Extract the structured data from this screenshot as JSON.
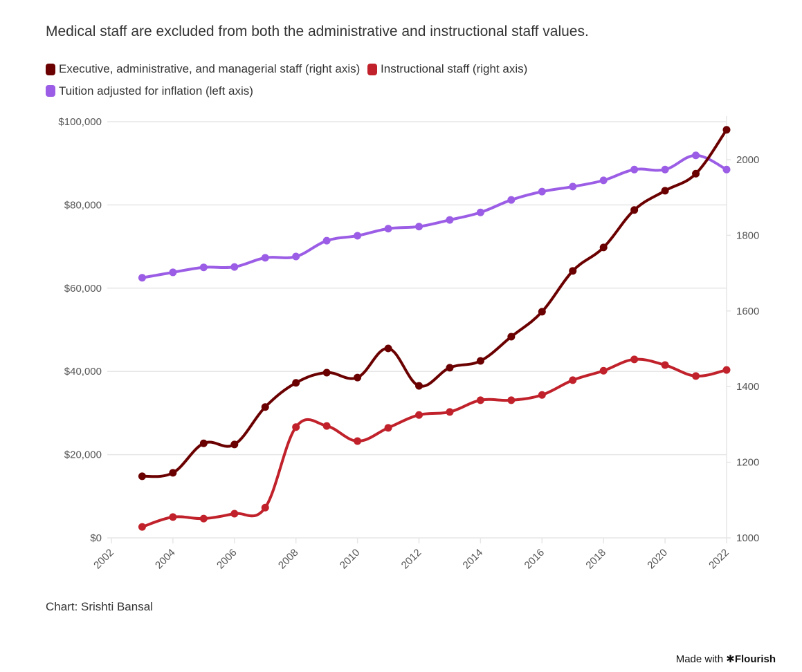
{
  "subtitle": "Medical staff are excluded from both the administrative and instructional staff values.",
  "legend": [
    {
      "label": "Executive, administrative, and managerial staff (right axis)",
      "color": "#6b0000"
    },
    {
      "label": "Instructional staff (right axis)",
      "color": "#c0212a"
    },
    {
      "label": "Tuition adjusted for inflation (left axis)",
      "color": "#9b5de5"
    }
  ],
  "credit": "Chart: Srishti Bansal",
  "made_with": {
    "prefix": "Made with",
    "brand": "Flourish",
    "icon": "asterisk-icon"
  },
  "chart_data": {
    "type": "line",
    "title": "",
    "xlabel": "",
    "x": [
      2003,
      2004,
      2005,
      2006,
      2007,
      2008,
      2009,
      2010,
      2011,
      2012,
      2013,
      2014,
      2015,
      2016,
      2017,
      2018,
      2019,
      2020,
      2021,
      2022
    ],
    "x_ticks": [
      "2002",
      "2004",
      "2006",
      "2008",
      "2010",
      "2012",
      "2014",
      "2016",
      "2018",
      "2020",
      "2022"
    ],
    "xlim": [
      2002,
      2022
    ],
    "left_axis": {
      "label": "",
      "ylim": [
        0,
        100000
      ],
      "ticks": [
        "$0",
        "$20,000",
        "$40,000",
        "$60,000",
        "$80,000",
        "$100,000"
      ],
      "tick_values": [
        0,
        20000,
        40000,
        60000,
        80000,
        100000
      ]
    },
    "right_axis": {
      "label": "",
      "ylim": [
        1000,
        2100
      ],
      "ticks": [
        "1000",
        "1200",
        "1400",
        "1600",
        "1800",
        "2000"
      ],
      "tick_values": [
        1000,
        1200,
        1400,
        1600,
        1800,
        2000
      ]
    },
    "grid": true,
    "legend_position": "top-left",
    "series": [
      {
        "name": "Executive, administrative, and managerial staff (right axis)",
        "axis": "right",
        "color": "#6b0000",
        "values": [
          1163,
          1172,
          1250,
          1247,
          1346,
          1410,
          1437,
          1424,
          1501,
          1402,
          1450,
          1468,
          1532,
          1598,
          1706,
          1768,
          1867,
          1918,
          1963,
          2079
        ]
      },
      {
        "name": "Instructional staff (right axis)",
        "axis": "right",
        "color": "#c0212a",
        "values": [
          1029,
          1055,
          1051,
          1064,
          1080,
          1293,
          1296,
          1256,
          1291,
          1325,
          1333,
          1364,
          1364,
          1378,
          1417,
          1442,
          1472,
          1457,
          1428,
          1444
        ]
      },
      {
        "name": "Tuition adjusted for inflation (left axis)",
        "axis": "left",
        "color": "#9b5de5",
        "values": [
          62500,
          63800,
          65000,
          65100,
          67300,
          67600,
          71400,
          72600,
          74300,
          74800,
          76400,
          78200,
          81200,
          83200,
          84400,
          85900,
          88500,
          88500,
          91900,
          88500
        ]
      }
    ]
  }
}
